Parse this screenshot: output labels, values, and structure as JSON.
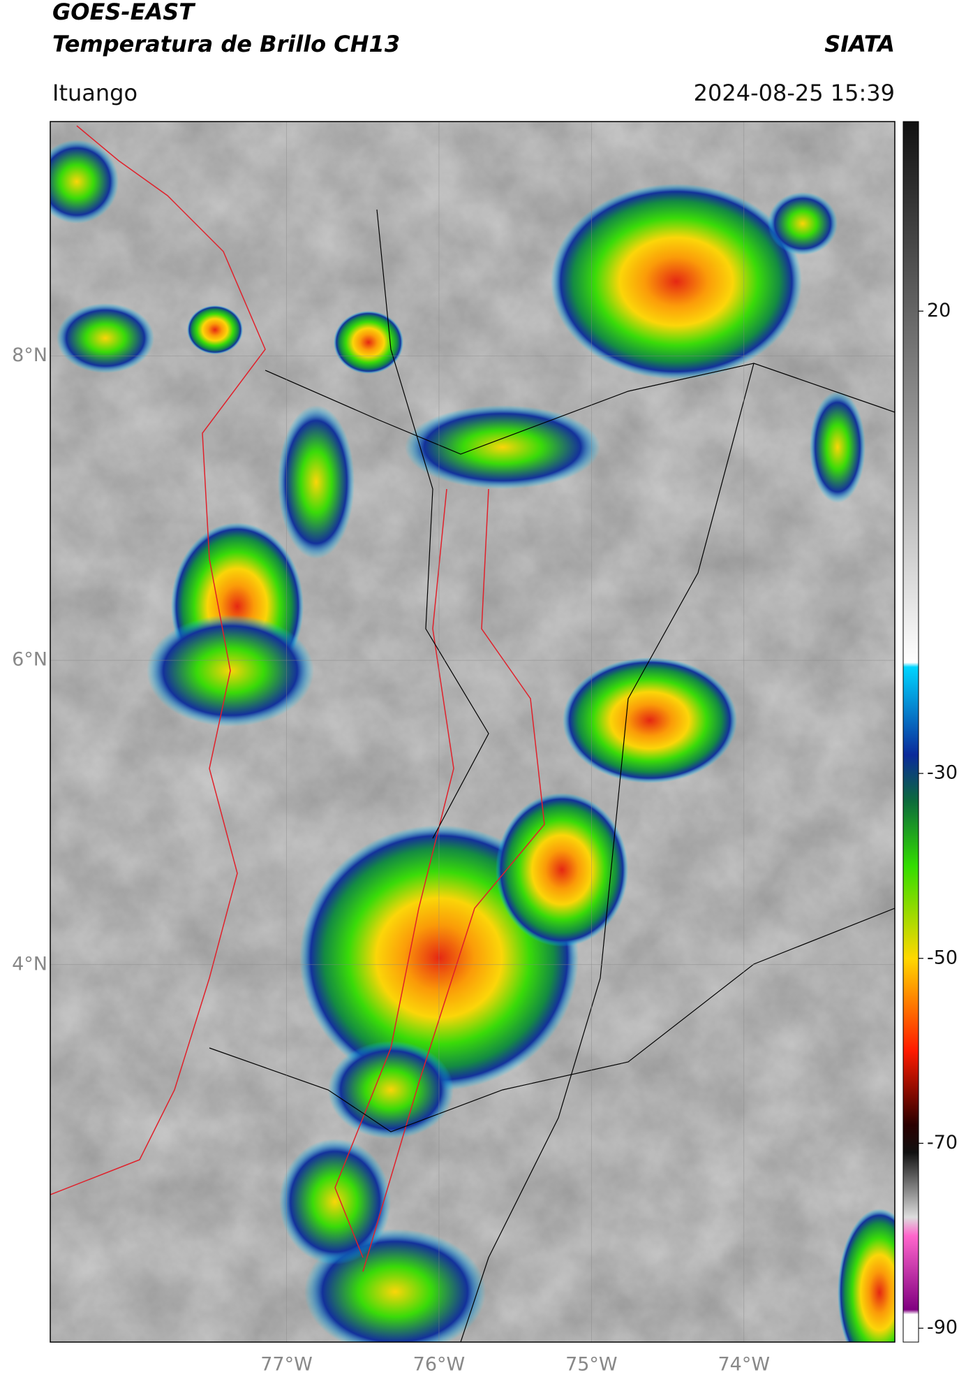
{
  "header": {
    "title": "GOES-EAST",
    "subtitle": "Temperatura de Brillo CH13",
    "source": "SIATA",
    "location": "Ituango",
    "timestamp": "2024-08-25 15:39"
  },
  "map": {
    "lonlim": [
      -78.55,
      -73.01
    ],
    "latlim": [
      1.52,
      9.54
    ],
    "lonticks": [
      {
        "value": -77,
        "label": "77°W"
      },
      {
        "value": -76,
        "label": "76°W"
      },
      {
        "value": -75,
        "label": "75°W"
      },
      {
        "value": -74,
        "label": "74°W"
      }
    ],
    "latticks": [
      {
        "value": 8,
        "label": "8°N"
      },
      {
        "value": 6,
        "label": "6°N"
      },
      {
        "value": 4,
        "label": "4°N"
      }
    ],
    "grid": true,
    "colorbar": {
      "lim": [
        -91.5,
        40.5
      ],
      "ticks": [
        20,
        -30,
        -50,
        -70,
        -90
      ],
      "stops": [
        {
          "value": 40.5,
          "color": "#111111"
        },
        {
          "value": -18,
          "color": "#ffffff"
        },
        {
          "value": -18.5,
          "color": "#00d5ff"
        },
        {
          "value": -28,
          "color": "#0b2a9a"
        },
        {
          "value": -33,
          "color": "#0c6b3c"
        },
        {
          "value": -40,
          "color": "#33dd00"
        },
        {
          "value": -50,
          "color": "#ffd800"
        },
        {
          "value": -60,
          "color": "#ff1a00"
        },
        {
          "value": -68,
          "color": "#2a0000"
        },
        {
          "value": -71,
          "color": "#111111"
        },
        {
          "value": -78,
          "color": "#dddddd"
        },
        {
          "value": -80,
          "color": "#ff66cc"
        },
        {
          "value": -88,
          "color": "#800080"
        },
        {
          "value": -88.5,
          "color": "#ffffff"
        },
        {
          "value": -91.5,
          "color": "#ffffff"
        }
      ]
    }
  }
}
